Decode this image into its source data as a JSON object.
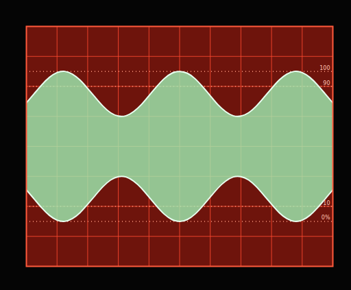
{
  "chart_data": {
    "type": "area",
    "x": [
      -5,
      -4.75,
      -4.5,
      -4.25,
      -4,
      -3.75,
      -3.5,
      -3.25,
      -3,
      -2.75,
      -2.5,
      -2.25,
      -2,
      -1.75,
      -1.5,
      -1.25,
      -1,
      -0.75,
      -0.5,
      -0.25,
      0,
      0.25,
      0.5,
      0.75,
      1,
      1.25,
      1.5,
      1.75,
      2,
      2.25,
      2.5,
      2.75,
      3,
      3.25,
      3.5,
      3.75,
      4,
      4.25,
      4.5,
      4.75,
      5
    ],
    "series": [
      {
        "color": "#9ef0b4",
        "values": [
          1.45,
          1.75,
          2.05,
          2.3,
          2.46,
          2.5,
          2.41,
          2.21,
          1.93,
          1.63,
          1.34,
          1.12,
          1.01,
          1.02,
          1.16,
          1.39,
          1.69,
          1.99,
          2.26,
          2.44,
          2.5,
          2.44,
          2.26,
          1.99,
          1.69,
          1.39,
          1.16,
          1.02,
          1.01,
          1.12,
          1.34,
          1.63,
          1.93,
          2.21,
          2.41,
          2.5,
          2.46,
          2.3,
          2.05,
          1.75,
          1.45
        ],
        "lower": [
          -1.45,
          -1.75,
          -2.05,
          -2.3,
          -2.46,
          -2.5,
          -2.41,
          -2.21,
          -1.93,
          -1.63,
          -1.34,
          -1.12,
          -1.01,
          -1.02,
          -1.16,
          -1.39,
          -1.69,
          -1.99,
          -2.26,
          -2.44,
          -2.5,
          -2.44,
          -2.26,
          -1.99,
          -1.69,
          -1.39,
          -1.16,
          -1.02,
          -1.01,
          -1.12,
          -1.34,
          -1.63,
          -1.93,
          -2.21,
          -2.41,
          -2.5,
          -2.46,
          -2.3,
          -2.05,
          -1.75,
          -1.45
        ]
      }
    ],
    "xlim": [
      -5,
      5
    ],
    "ylim": [
      -4,
      4
    ],
    "xticks": [
      -5,
      -4,
      -3,
      -2,
      -1,
      0,
      1,
      2,
      3,
      4,
      5
    ],
    "yticks": [
      -4,
      -3,
      -2,
      -1,
      0,
      1,
      2,
      3,
      4
    ],
    "grid": true,
    "tick_labels": false,
    "annotations": [
      {
        "text": "100",
        "y": 2.5
      },
      {
        "text": "90",
        "y": 2
      },
      {
        "text": "10",
        "y": -2
      },
      {
        "text": "0%",
        "y": -2.5
      }
    ]
  }
}
